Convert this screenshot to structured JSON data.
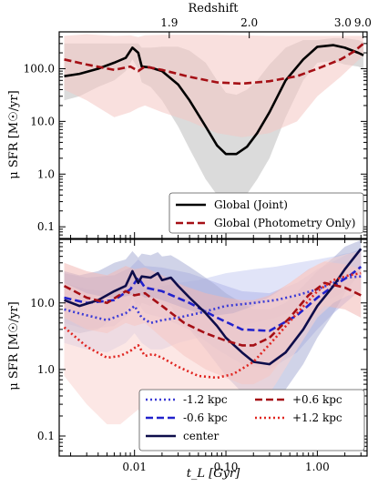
{
  "chart_data": [
    {
      "type": "line",
      "panel": "top",
      "xscale": "log",
      "yscale": "log",
      "xlim": [
        0.0015,
        3.5
      ],
      "ylim": [
        0.06,
        500
      ],
      "ylabel": "μ SFR [M☉/yr]",
      "top_axis_label": "Redshift",
      "top_ticks": [
        {
          "label": "1.9",
          "x": 0.024
        },
        {
          "label": "2.0",
          "x": 0.18
        },
        {
          "label": "3.0",
          "x": 1.9
        },
        {
          "label": "9.0",
          "x": 3.15
        }
      ],
      "yticks": [
        {
          "v": 0.1,
          "label": "0.1"
        },
        {
          "v": 1,
          "label": "1.0"
        },
        {
          "v": 10,
          "label": "10.0"
        },
        {
          "v": 100,
          "label": "100.0"
        }
      ],
      "legend_position": "lower-right",
      "series": [
        {
          "name": "Global (Joint)",
          "color": "#000000",
          "dash": "solid",
          "band_color": "#bdbdbd",
          "x": [
            0.0017,
            0.0025,
            0.004,
            0.006,
            0.008,
            0.0095,
            0.011,
            0.012,
            0.015,
            0.02,
            0.03,
            0.04,
            0.06,
            0.08,
            0.1,
            0.13,
            0.17,
            0.22,
            0.3,
            0.45,
            0.7,
            1.0,
            1.5,
            2.0,
            2.8,
            3.2
          ],
          "y": [
            72,
            80,
            100,
            130,
            160,
            250,
            200,
            110,
            105,
            90,
            50,
            25,
            8,
            3.5,
            2.4,
            2.4,
            3.3,
            6,
            15,
            60,
            150,
            260,
            280,
            250,
            200,
            180
          ],
          "lower": [
            25,
            30,
            45,
            60,
            90,
            150,
            100,
            55,
            45,
            25,
            8,
            3,
            0.8,
            0.4,
            0.32,
            0.32,
            0.42,
            0.8,
            2,
            12,
            60,
            130,
            140,
            120,
            110,
            100
          ],
          "upper": [
            300,
            300,
            300,
            300,
            300,
            300,
            300,
            250,
            250,
            260,
            260,
            220,
            130,
            60,
            35,
            32,
            40,
            60,
            120,
            250,
            350,
            350,
            380,
            380,
            350,
            320
          ]
        },
        {
          "name": "Global (Photometry Only)",
          "color": "#a50f15",
          "dash": "dashed",
          "band_color": "#f4c7c3",
          "x": [
            0.0017,
            0.003,
            0.006,
            0.009,
            0.011,
            0.013,
            0.02,
            0.04,
            0.08,
            0.15,
            0.3,
            0.6,
            1.0,
            1.8,
            2.5,
            3.2
          ],
          "y": [
            150,
            120,
            95,
            110,
            90,
            110,
            95,
            70,
            55,
            52,
            58,
            72,
            100,
            150,
            210,
            300
          ],
          "lower": [
            40,
            25,
            12,
            15,
            18,
            20,
            15,
            10,
            6,
            5,
            6,
            10,
            30,
            70,
            120,
            180
          ],
          "upper": [
            420,
            450,
            420,
            430,
            400,
            430,
            440,
            440,
            440,
            430,
            420,
            420,
            420,
            420,
            420,
            420
          ]
        }
      ]
    },
    {
      "type": "line",
      "panel": "bottom",
      "xscale": "log",
      "yscale": "log",
      "xlim": [
        0.0015,
        3.5
      ],
      "ylim": [
        0.05,
        90
      ],
      "xlabel": "t_L [Gyr]",
      "ylabel": "μ SFR [M☉/yr]",
      "xticks": [
        {
          "v": 0.01,
          "label": "0.01"
        },
        {
          "v": 0.1,
          "label": "0.10"
        },
        {
          "v": 1,
          "label": "1.00"
        }
      ],
      "yticks": [
        {
          "v": 0.1,
          "label": "0.1"
        },
        {
          "v": 1,
          "label": "1.0"
        },
        {
          "v": 10,
          "label": "10.0"
        }
      ],
      "legend_position": "lower-right",
      "series": [
        {
          "name": "-1.2 kpc",
          "color": "#3b3bd6",
          "dash": "dotted",
          "band_color": "#c9cdf2",
          "x": [
            0.0017,
            0.003,
            0.005,
            0.008,
            0.01,
            0.012,
            0.015,
            0.02,
            0.03,
            0.05,
            0.1,
            0.2,
            0.35,
            0.6,
            1.0,
            1.5,
            2.0,
            3.0
          ],
          "y": [
            8,
            6.5,
            5.5,
            7,
            9,
            6,
            5,
            5.5,
            6,
            7,
            9,
            10,
            11,
            13,
            16,
            20,
            24,
            25
          ],
          "lower": [
            2.5,
            2,
            1.8,
            2.5,
            3.5,
            2.5,
            2,
            2,
            2.5,
            3,
            4,
            5,
            6,
            8,
            10,
            12,
            15,
            15
          ],
          "upper": [
            20,
            16,
            15,
            18,
            22,
            18,
            16,
            18,
            20,
            22,
            28,
            32,
            35,
            40,
            45,
            50,
            55,
            58
          ]
        },
        {
          "name": "-0.6 kpc",
          "color": "#2222cc",
          "dash": "dashed",
          "band_color": "#b3b7ea",
          "x": [
            0.0017,
            0.003,
            0.006,
            0.009,
            0.011,
            0.013,
            0.02,
            0.04,
            0.08,
            0.15,
            0.3,
            0.6,
            1.0,
            1.5,
            2.2,
            3.0
          ],
          "y": [
            12,
            10,
            11,
            16,
            24,
            17,
            15,
            10,
            6,
            4,
            3.8,
            6.5,
            12,
            18,
            25,
            35
          ],
          "lower": [
            5,
            4,
            4.5,
            7,
            10,
            7,
            6,
            4,
            2,
            1.2,
            1,
            1.8,
            4,
            7,
            11,
            16
          ],
          "upper": [
            28,
            24,
            26,
            34,
            45,
            36,
            34,
            28,
            20,
            15,
            14,
            20,
            32,
            42,
            55,
            65
          ]
        },
        {
          "name": "center",
          "color": "#0d0d4a",
          "dash": "solid",
          "band_color": "#a9aed6",
          "x": [
            0.0017,
            0.0025,
            0.004,
            0.006,
            0.008,
            0.0095,
            0.011,
            0.012,
            0.015,
            0.018,
            0.02,
            0.025,
            0.03,
            0.04,
            0.06,
            0.08,
            0.1,
            0.15,
            0.2,
            0.3,
            0.45,
            0.7,
            1.0,
            1.5,
            2.0,
            3.0
          ],
          "y": [
            11,
            9,
            11,
            15,
            18,
            30,
            20,
            25,
            24,
            28,
            22,
            24,
            18,
            12,
            7,
            4.5,
            3,
            1.8,
            1.3,
            1.2,
            1.8,
            4,
            9,
            18,
            32,
            65
          ],
          "lower": [
            4,
            3.5,
            4,
            6,
            7,
            12,
            8,
            10,
            9,
            11,
            9,
            9,
            6,
            4,
            2,
            1.2,
            0.8,
            0.45,
            0.35,
            0.35,
            0.5,
            1.2,
            3,
            7,
            14,
            30
          ],
          "upper": [
            30,
            26,
            30,
            40,
            45,
            60,
            48,
            55,
            52,
            58,
            50,
            52,
            45,
            35,
            24,
            18,
            14,
            10,
            8,
            8,
            10,
            18,
            30,
            48,
            70,
            88
          ]
        },
        {
          "name": "+0.6 kpc",
          "color": "#a50f15",
          "dash": "dashed",
          "band_color": "#f2b8b4",
          "x": [
            0.0017,
            0.003,
            0.005,
            0.008,
            0.01,
            0.013,
            0.02,
            0.035,
            0.06,
            0.1,
            0.15,
            0.2,
            0.3,
            0.5,
            0.8,
            1.2,
            2.0,
            3.0
          ],
          "y": [
            18,
            12,
            10,
            15,
            13,
            14,
            9,
            5,
            3.5,
            2.7,
            2.3,
            2.3,
            3,
            6,
            13,
            20,
            17,
            13
          ],
          "lower": [
            6,
            4,
            3.5,
            5,
            4.5,
            5,
            3,
            1.6,
            1,
            0.75,
            0.6,
            0.6,
            0.8,
            2,
            5,
            9,
            8,
            6
          ],
          "upper": [
            40,
            30,
            26,
            36,
            32,
            34,
            26,
            18,
            14,
            12,
            11,
            11,
            13,
            20,
            32,
            42,
            38,
            32
          ]
        },
        {
          "name": "+1.2 kpc",
          "color": "#e0241f",
          "dash": "dotted",
          "band_color": "#f9d3d0",
          "x": [
            0.0017,
            0.003,
            0.005,
            0.007,
            0.009,
            0.011,
            0.013,
            0.016,
            0.02,
            0.03,
            0.05,
            0.08,
            0.12,
            0.2,
            0.35,
            0.6,
            1.0,
            1.5,
            2.2,
            3.0
          ],
          "y": [
            4.3,
            2.2,
            1.5,
            1.6,
            1.9,
            2.3,
            1.6,
            1.7,
            1.5,
            1.1,
            0.8,
            0.75,
            0.85,
            1.3,
            3,
            7,
            15,
            22,
            26,
            28
          ],
          "lower": [
            0.8,
            0.3,
            0.15,
            0.15,
            0.2,
            0.25,
            0.15,
            0.15,
            0.12,
            0.1,
            0.08,
            0.08,
            0.1,
            0.2,
            0.6,
            2,
            6,
            10,
            13,
            14
          ],
          "upper": [
            20,
            14,
            12,
            12,
            13,
            14,
            12,
            12,
            11,
            9,
            7,
            6.5,
            7,
            9,
            14,
            24,
            38,
            48,
            55,
            60
          ]
        }
      ]
    }
  ],
  "legend_top": [
    {
      "label": "Global (Joint)",
      "series": 0
    },
    {
      "label": "Global (Photometry Only)",
      "series": 1
    }
  ],
  "legend_bottom": [
    {
      "label": "-1.2 kpc",
      "series": 0
    },
    {
      "label": "+0.6 kpc",
      "series": 3
    },
    {
      "label": "-0.6 kpc",
      "series": 1
    },
    {
      "label": "+1.2 kpc",
      "series": 4
    },
    {
      "label": "center",
      "series": 2
    }
  ]
}
